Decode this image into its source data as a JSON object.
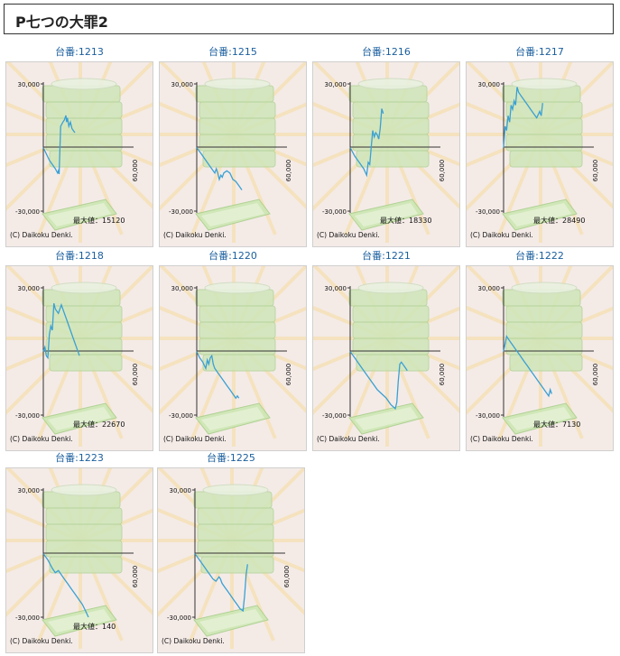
{
  "page": {
    "title": "P七つの大罪2"
  },
  "chart_common": {
    "y_ticks": [
      "30,000",
      "-30,000"
    ],
    "x_tick": "60,000",
    "max_label": "最大値：",
    "copyright": "(C) Daikoku Denki.",
    "line_color": "#3aa0d4"
  },
  "chart_data": [
    {
      "type": "line",
      "label": "台番:1213",
      "max_value": "15120",
      "x": [
        0,
        2000,
        4000,
        6000,
        8000,
        9500,
        10000,
        10500,
        11500,
        13000,
        14000,
        15000,
        15500,
        16000,
        17000,
        18000,
        19000,
        20000,
        21000
      ],
      "values": [
        0,
        -3000,
        -6000,
        -8000,
        -10000,
        -12000,
        -11000,
        -12500,
        10000,
        12000,
        13000,
        15120,
        12000,
        14000,
        10000,
        12000,
        9000,
        8000,
        7000
      ],
      "xlim": [
        0,
        60000
      ],
      "ylim": [
        -30000,
        30000
      ]
    },
    {
      "type": "line",
      "label": "台番:1215",
      "max_value": "",
      "x": [
        0,
        3000,
        6000,
        9000,
        12000,
        13000,
        14000,
        15000,
        16000,
        17000,
        18000,
        20000,
        22000,
        24000,
        26000,
        28000,
        30000
      ],
      "values": [
        0,
        -3000,
        -6000,
        -9000,
        -12000,
        -10000,
        -12000,
        -15000,
        -13000,
        -14000,
        -12000,
        -11000,
        -12000,
        -15000,
        -16000,
        -18000,
        -20000
      ],
      "xlim": [
        0,
        60000
      ],
      "ylim": [
        -30000,
        30000
      ]
    },
    {
      "type": "line",
      "label": "台番:1216",
      "max_value": "18330",
      "x": [
        0,
        3000,
        6000,
        9000,
        11000,
        12000,
        13000,
        14000,
        15000,
        16000,
        17000,
        18000,
        19000,
        20000,
        21000,
        22000
      ],
      "values": [
        0,
        -4000,
        -7000,
        -10000,
        -13000,
        -7000,
        -8000,
        0,
        8000,
        5000,
        7000,
        6000,
        4000,
        9000,
        18330,
        16000
      ],
      "xlim": [
        0,
        60000
      ],
      "ylim": [
        -30000,
        30000
      ]
    },
    {
      "type": "line",
      "label": "台番:1217",
      "max_value": "28490",
      "x": [
        0,
        1000,
        2000,
        3000,
        4000,
        5000,
        6000,
        7000,
        8000,
        9000,
        10000,
        12000,
        14000,
        16000,
        18000,
        20000,
        22000,
        24000,
        25000,
        26000
      ],
      "values": [
        0,
        10000,
        8000,
        15000,
        12000,
        20000,
        18000,
        22000,
        20000,
        28490,
        26000,
        24000,
        22000,
        20000,
        18000,
        16000,
        14000,
        17000,
        15000,
        21000
      ],
      "xlim": [
        0,
        60000
      ],
      "ylim": [
        -30000,
        30000
      ]
    },
    {
      "type": "line",
      "label": "台番:1218",
      "max_value": "22670",
      "x": [
        0,
        1000,
        2000,
        3000,
        4000,
        5000,
        6000,
        7000,
        8000,
        10000,
        12000,
        14000,
        16000,
        18000,
        20000,
        22000,
        24000
      ],
      "values": [
        0,
        2000,
        -2000,
        -3000,
        8000,
        12000,
        10000,
        22670,
        20000,
        18000,
        22000,
        18000,
        14000,
        10000,
        6000,
        2000,
        -2000
      ],
      "xlim": [
        0,
        60000
      ],
      "ylim": [
        -30000,
        30000
      ]
    },
    {
      "type": "line",
      "label": "台番:1220",
      "max_value": "",
      "x": [
        0,
        2000,
        4000,
        6000,
        7000,
        8000,
        9000,
        10000,
        11000,
        12000,
        14000,
        16000,
        18000,
        20000,
        22000,
        24000,
        26000,
        27000,
        28000
      ],
      "values": [
        0,
        -3000,
        -5000,
        -8000,
        -4000,
        -6000,
        -3000,
        -2000,
        -6000,
        -8000,
        -10000,
        -12000,
        -14000,
        -16000,
        -18000,
        -20000,
        -22000,
        -21000,
        -22000
      ],
      "xlim": [
        0,
        60000
      ],
      "ylim": [
        -30000,
        30000
      ]
    },
    {
      "type": "line",
      "label": "台番:1221",
      "max_value": "",
      "x": [
        0,
        3000,
        6000,
        9000,
        12000,
        15000,
        18000,
        21000,
        24000,
        27000,
        30000,
        31000,
        32000,
        33000,
        34000,
        36000,
        38000
      ],
      "values": [
        0,
        -3000,
        -6000,
        -9000,
        -12000,
        -15000,
        -18000,
        -20000,
        -22000,
        -25000,
        -27000,
        -24000,
        -14000,
        -6000,
        -5000,
        -7000,
        -9000
      ],
      "xlim": [
        0,
        60000
      ],
      "ylim": [
        -30000,
        30000
      ]
    },
    {
      "type": "line",
      "label": "台番:1222",
      "max_value": "7130",
      "x": [
        0,
        2000,
        4000,
        6000,
        8000,
        10000,
        12000,
        14000,
        16000,
        18000,
        20000,
        22000,
        24000,
        26000,
        28000,
        30000,
        31000,
        32000
      ],
      "values": [
        0,
        7130,
        5000,
        3000,
        1000,
        -1000,
        -3000,
        -5000,
        -7000,
        -9000,
        -11000,
        -13000,
        -15000,
        -17000,
        -19000,
        -21000,
        -18000,
        -20000
      ],
      "xlim": [
        0,
        60000
      ],
      "ylim": [
        -30000,
        30000
      ]
    },
    {
      "type": "line",
      "label": "台番:1223",
      "max_value": "140",
      "x": [
        0,
        3000,
        6000,
        8000,
        10000,
        12000,
        14000,
        16000,
        18000,
        20000,
        22000,
        24000,
        26000,
        28000,
        30000
      ],
      "values": [
        0,
        -3000,
        -7000,
        -9000,
        -8000,
        -10000,
        -12000,
        -14000,
        -16000,
        -18000,
        -20000,
        -22000,
        -24000,
        -27000,
        -30000
      ],
      "xlim": [
        0,
        60000
      ],
      "ylim": [
        -30000,
        30000
      ]
    },
    {
      "type": "line",
      "label": "台番:1225",
      "max_value": "",
      "x": [
        0,
        3000,
        6000,
        9000,
        12000,
        14000,
        16000,
        17000,
        18000,
        20000,
        22000,
        24000,
        26000,
        28000,
        30000,
        32000,
        33000,
        34000,
        35000
      ],
      "values": [
        0,
        -3000,
        -6000,
        -9000,
        -12000,
        -13000,
        -11000,
        -12000,
        -14000,
        -16000,
        -18000,
        -20000,
        -22000,
        -24000,
        -26000,
        -27000,
        -20000,
        -10000,
        -5000
      ],
      "xlim": [
        0,
        60000
      ],
      "ylim": [
        -30000,
        30000
      ]
    }
  ]
}
